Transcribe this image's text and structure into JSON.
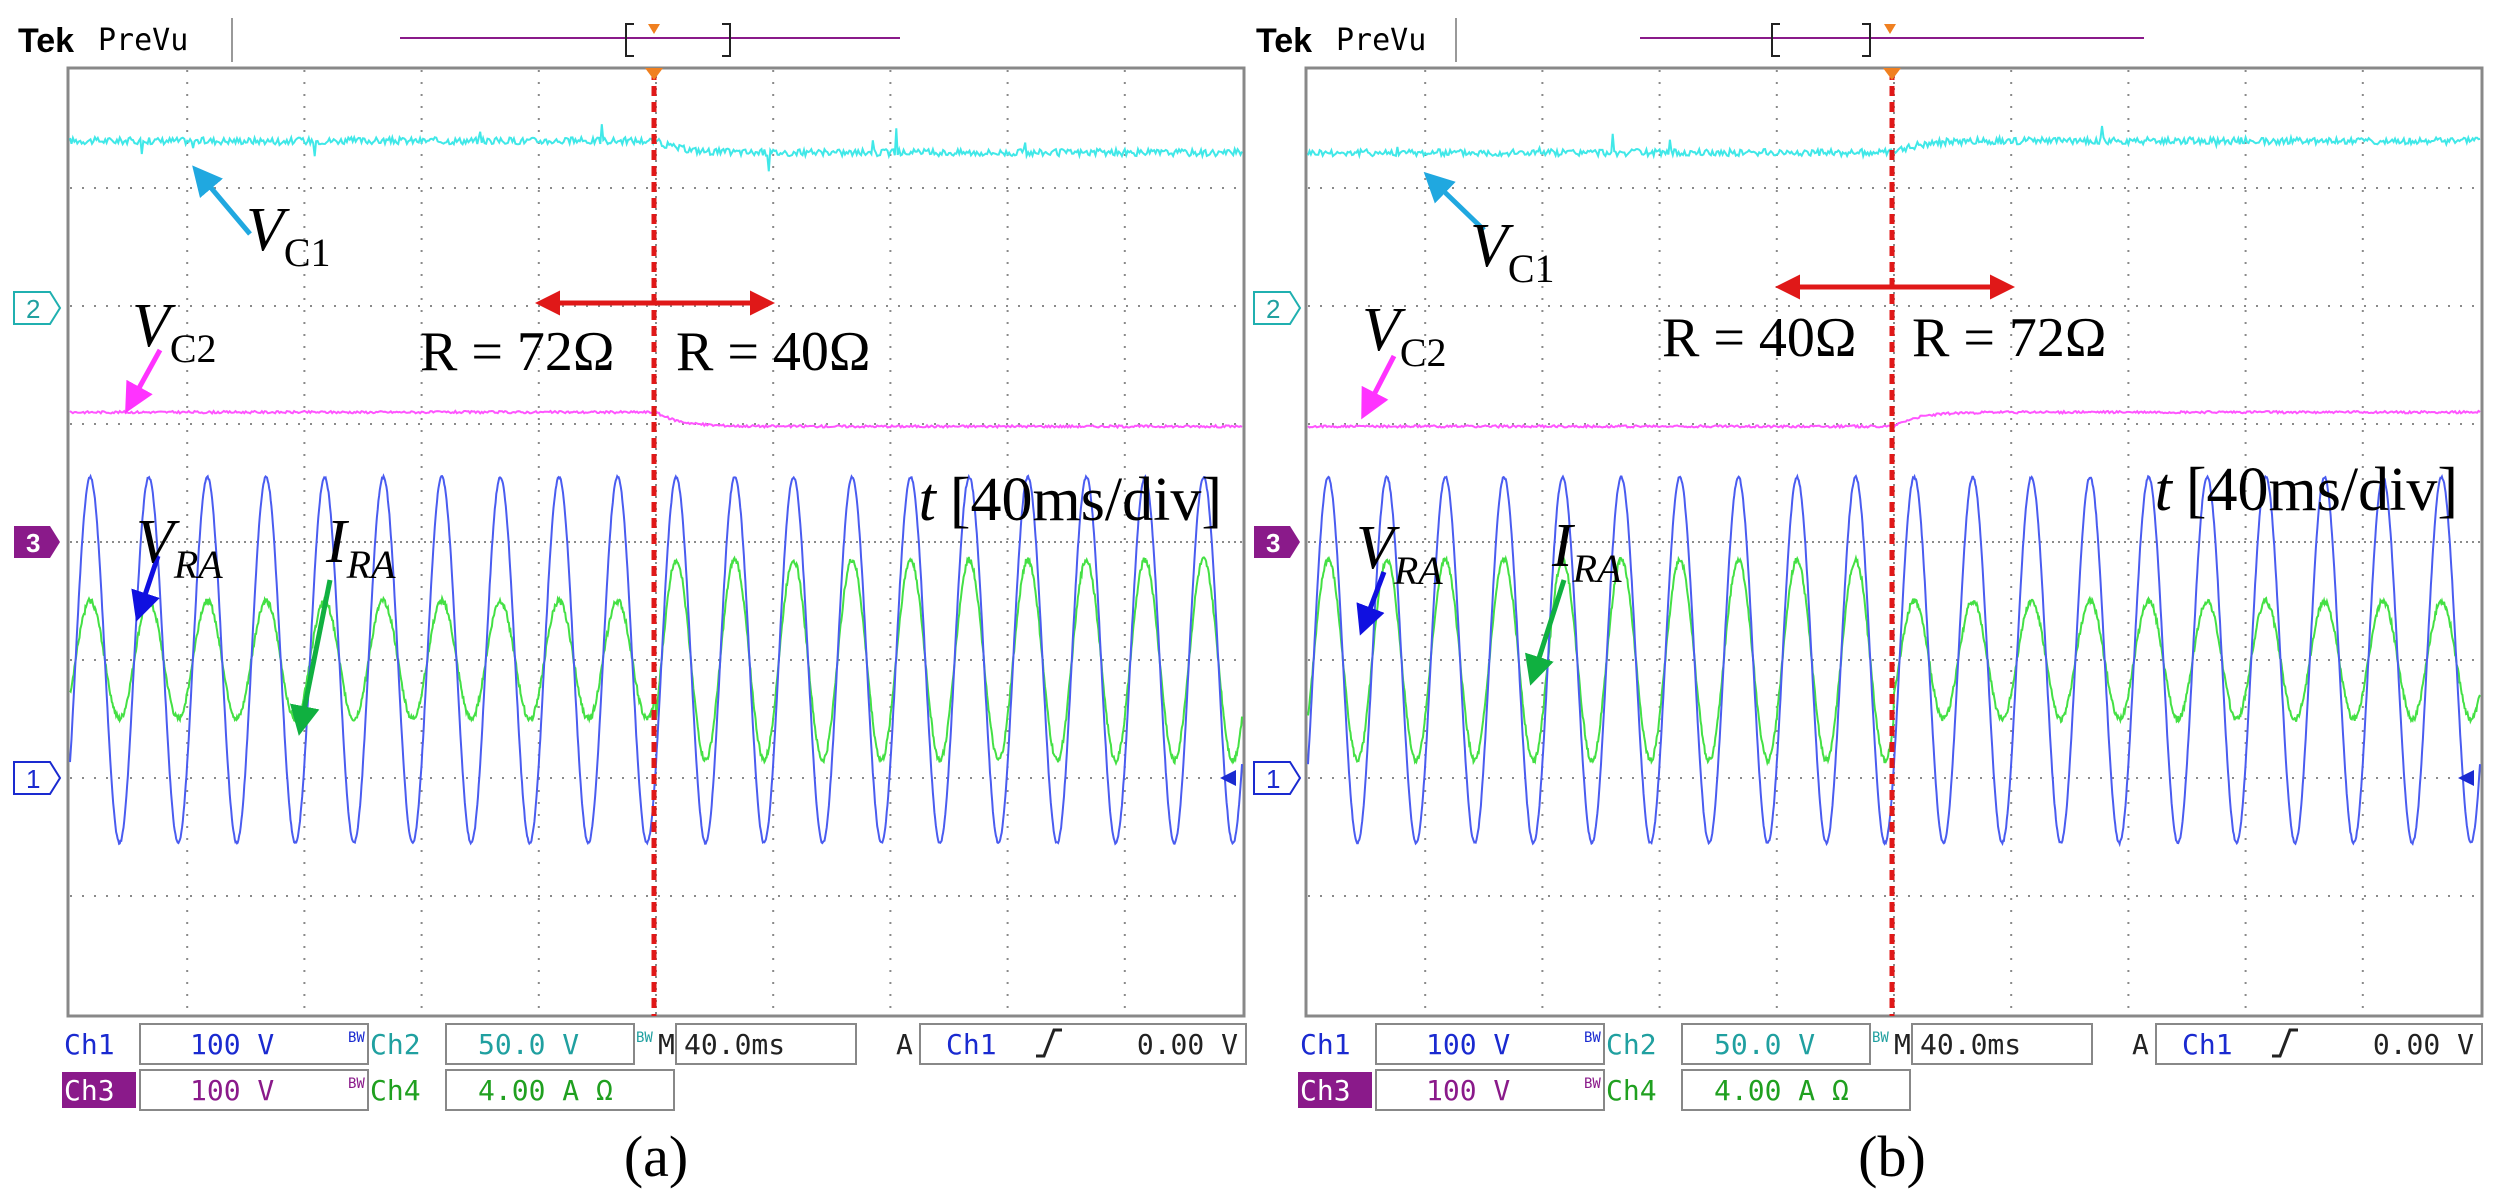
{
  "header": {
    "brand": "Tek",
    "mode": "PreVu"
  },
  "panels": [
    {
      "caption": "(a)",
      "timebase_label_pre": "t",
      "timebase_label": "[40ms/div]",
      "labels": {
        "vc1": {
          "main": "V",
          "sub": "C1"
        },
        "vc2": {
          "main": "V",
          "sub": "C2"
        },
        "vra": {
          "main": "V",
          "sub": "RA"
        },
        "ira": {
          "main": "I",
          "sub": "RA"
        }
      },
      "r_before": "R = 72Ω",
      "r_after": "R = 40Ω",
      "ch_markers": [
        "2",
        "3",
        "1"
      ],
      "status": {
        "ch1": "Ch1",
        "ch1_scale": "100 V",
        "ch2": "Ch2",
        "ch2_scale": "50.0 V",
        "ch3": "Ch3",
        "ch3_scale": "100 V",
        "ch4": "Ch4",
        "ch4_scale": "4.00 A Ω",
        "bw": "BW",
        "m_label": "M",
        "m_value": "40.0ms",
        "trig_a": "A",
        "trig_src": "Ch1",
        "trig_level": "0.00 V"
      }
    },
    {
      "caption": "(b)",
      "timebase_label_pre": "t",
      "timebase_label": "[40ms/div]",
      "labels": {
        "vc1": {
          "main": "V",
          "sub": "C1"
        },
        "vc2": {
          "main": "V",
          "sub": "C2"
        },
        "vra": {
          "main": "V",
          "sub": "RA"
        },
        "ira": {
          "main": "I",
          "sub": "RA"
        }
      },
      "r_before": "R = 40Ω",
      "r_after": "R = 72Ω",
      "ch_markers": [
        "2",
        "3",
        "1"
      ],
      "status": {
        "ch1": "Ch1",
        "ch1_scale": "100 V",
        "ch2": "Ch2",
        "ch2_scale": "50.0 V",
        "ch3": "Ch3",
        "ch3_scale": "100 V",
        "ch4": "Ch4",
        "ch4_scale": "4.00 A Ω",
        "bw": "BW",
        "m_label": "M",
        "m_value": "40.0ms",
        "trig_a": "A",
        "trig_src": "Ch1",
        "trig_level": "0.00 V"
      }
    }
  ],
  "colors": {
    "cyan": "#40e8e8",
    "magenta": "#ff55ff",
    "blue": "#4a5cf0",
    "green": "#44e044",
    "red_marker": "#e01818",
    "grid": "#8a8a8a",
    "ch3_badge": "#8a1a8a",
    "arrow_blue": "#1010e0",
    "arrow_cyan": "#20a8e0",
    "arrow_green": "#10b040"
  },
  "chart_data": [
    {
      "type": "line",
      "title": "(a)",
      "xlabel": "t [40ms/div]",
      "xlim": [
        0,
        400
      ],
      "x_unit": "ms",
      "grid": true,
      "divisions": {
        "x": 10,
        "y": 8
      },
      "event_time_ms": 200,
      "series": [
        {
          "name": "VC1",
          "color": "#40e8e8",
          "level_before_div": 3.4,
          "level_after_div": 3.3,
          "noise_div": 0.06
        },
        {
          "name": "VC2",
          "color": "#ff55ff",
          "level_before_div": 1.1,
          "level_after_div": 0.98,
          "noise_div": 0.02
        },
        {
          "name": "VRA",
          "color": "#4a5cf0",
          "frequency_hz": 50,
          "amplitude_div": 1.55,
          "offset_div": -1.0,
          "amplitude_after_div": 1.55
        },
        {
          "name": "IRA",
          "color": "#44e044",
          "frequency_hz": 50,
          "amplitude_div": 0.5,
          "amplitude_after_div": 0.85,
          "offset_div": -1.0
        }
      ]
    },
    {
      "type": "line",
      "title": "(b)",
      "xlabel": "t [40ms/div]",
      "xlim": [
        0,
        400
      ],
      "x_unit": "ms",
      "grid": true,
      "divisions": {
        "x": 10,
        "y": 8
      },
      "event_time_ms": 200,
      "series": [
        {
          "name": "VC1",
          "color": "#40e8e8",
          "level_before_div": 3.3,
          "level_after_div": 3.4,
          "noise_div": 0.06
        },
        {
          "name": "VC2",
          "color": "#ff55ff",
          "level_before_div": 0.98,
          "level_after_div": 1.1,
          "noise_div": 0.02
        },
        {
          "name": "VRA",
          "color": "#4a5cf0",
          "frequency_hz": 50,
          "amplitude_div": 1.55,
          "offset_div": -1.0,
          "amplitude_after_div": 1.55
        },
        {
          "name": "IRA",
          "color": "#44e044",
          "frequency_hz": 50,
          "amplitude_div": 0.85,
          "amplitude_after_div": 0.5,
          "offset_div": -1.0
        }
      ]
    }
  ]
}
